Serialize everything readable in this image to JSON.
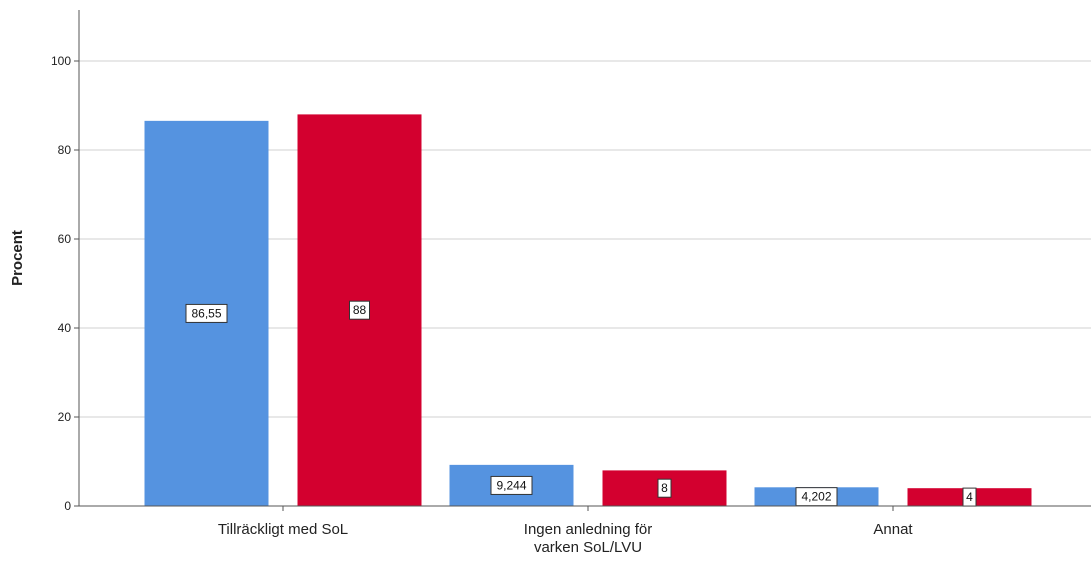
{
  "chart_data": {
    "type": "bar",
    "ylabel": "Procent",
    "ylim": [
      0,
      112
    ],
    "yticks": [
      0,
      20,
      40,
      60,
      80,
      100
    ],
    "grid": true,
    "categories": [
      "Tillräckligt med SoL",
      "Ingen anledning för varken SoL/LVU",
      "Annat"
    ],
    "category_lines": [
      [
        "Tillräckligt med SoL"
      ],
      [
        "Ingen anledning för",
        "varken SoL/LVU"
      ],
      [
        "Annat"
      ]
    ],
    "series": [
      {
        "values": [
          86.55,
          9.244,
          4.202
        ],
        "labels": [
          "86,55",
          "9,244",
          "4,202"
        ],
        "color": "#5593e0"
      },
      {
        "values": [
          88,
          8,
          4
        ],
        "labels": [
          "88",
          "8",
          "4"
        ],
        "color": "#d3002f"
      }
    ]
  }
}
